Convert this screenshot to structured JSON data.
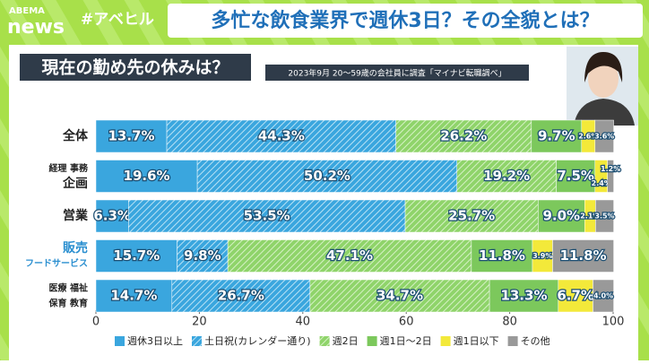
{
  "header": {
    "logo_top": "ABEMA",
    "logo": "news",
    "hashtag": "#アベヒル",
    "headline": "多忙な飲食業界で週休3日？その全貌とは？"
  },
  "chart_data": {
    "type": "stacked-bar-horizontal",
    "title": "現在の勤め先の休みは？",
    "subtitle": "2023年9月  20～59歳の会社員に調査「マイナビ転職調べ」",
    "categories": [
      [
        "全体"
      ],
      [
        "経理 事務",
        "企画"
      ],
      [
        "営業"
      ],
      [
        "販売",
        "フードサービス"
      ],
      [
        "医療 福祉",
        "保育 教育"
      ]
    ],
    "series": [
      {
        "name": "週休3日以上",
        "color": "#3aa6de",
        "hatch": false,
        "values": [
          13.7,
          19.6,
          6.3,
          15.7,
          14.7
        ],
        "value_labels": [
          "13.7%",
          "19.6%",
          "6.3%",
          "15.7%",
          "14.7%"
        ]
      },
      {
        "name": "土日祝(カレンダー通り)",
        "color": "#3aa6de",
        "hatch": true,
        "values": [
          44.3,
          50.2,
          53.5,
          9.8,
          26.7
        ],
        "value_labels": [
          "44.3%",
          "50.2%",
          "53.5%",
          "9.8%",
          "26.7%"
        ]
      },
      {
        "name": "週2日",
        "color": "#8fd46a",
        "hatch": true,
        "values": [
          26.2,
          19.2,
          25.7,
          47.1,
          34.7
        ],
        "value_labels": [
          "26.2%",
          "19.2%",
          "25.7%",
          "47.1%",
          "34.7%"
        ]
      },
      {
        "name": "週1日～2日",
        "color": "#7cc85c",
        "hatch": false,
        "values": [
          9.7,
          7.5,
          9.0,
          11.8,
          13.3
        ],
        "value_labels": [
          "9.7%",
          "7.5%",
          "9.0%",
          "11.8%",
          "13.3%"
        ]
      },
      {
        "name": "週1日以下",
        "color": "#f3e93a",
        "hatch": false,
        "values": [
          2.6,
          2.4,
          2.1,
          3.9,
          6.7
        ],
        "value_labels": [
          "2.6%",
          "2.4%",
          "2.1%",
          "3.9%",
          "6.7%"
        ]
      },
      {
        "name": "その他",
        "color": "#999999",
        "hatch": false,
        "values": [
          3.6,
          1.2,
          3.5,
          11.8,
          4.0
        ],
        "value_labels": [
          "3.6%",
          "1.2%",
          "3.5%",
          "11.8%",
          "4.0%"
        ]
      }
    ],
    "xlim": [
      0,
      100
    ],
    "xticks": [
      0,
      20,
      40,
      60,
      80,
      100
    ],
    "grid": false,
    "legend": "bottom"
  }
}
